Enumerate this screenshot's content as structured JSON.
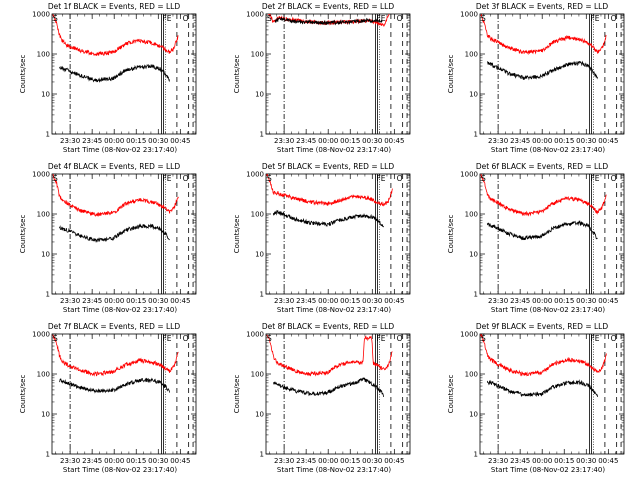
{
  "chart_data": [
    {
      "type": "line",
      "title": "Det 1f BLACK = Events, RED = LLD",
      "ylabel": "Counts/sec",
      "xlabel": "Start Time (08-Nov-02 23:17:40)",
      "yscale": "log",
      "ylim": [
        1,
        1000
      ],
      "x_tick_labels": [
        "23:30",
        "23:45",
        "00:00",
        "00:15",
        "00:30",
        "00:45"
      ],
      "x_minutes": [
        12.33,
        27.33,
        42.33,
        57.33,
        72.33,
        87.33
      ],
      "xlim_minutes": [
        0,
        98
      ],
      "markers": {
        "S": 0,
        "FE": 74.5,
        "O": 93
      },
      "series": [
        {
          "name": "LLD",
          "color": "#ff0000",
          "start_minute": 0.5,
          "end_minute": 86,
          "x": [
            0.5,
            3,
            5,
            7,
            10,
            20,
            30,
            42,
            50,
            60,
            70,
            76,
            80,
            83,
            86
          ],
          "y": [
            1000,
            600,
            300,
            220,
            170,
            120,
            100,
            110,
            180,
            220,
            180,
            140,
            110,
            140,
            300
          ]
        },
        {
          "name": "Events",
          "color": "#000000",
          "start_minute": 5,
          "end_minute": 80,
          "x": [
            5,
            10,
            20,
            30,
            42,
            50,
            60,
            68,
            74,
            78,
            80
          ],
          "y": [
            45,
            40,
            28,
            22,
            25,
            40,
            48,
            50,
            42,
            30,
            22
          ]
        }
      ]
    },
    {
      "type": "line",
      "title": "Det 2f BLACK = Events, RED = LLD",
      "ylabel": "Counts/sec",
      "xlabel": "Start Time (08-Nov-02 23:17:40)",
      "yscale": "log",
      "ylim": [
        1,
        1000
      ],
      "x_tick_labels": [
        "23:30",
        "23:45",
        "00:00",
        "00:15",
        "00:30",
        "00:45"
      ],
      "x_minutes": [
        12.33,
        27.33,
        42.33,
        57.33,
        72.33,
        87.33
      ],
      "xlim_minutes": [
        0,
        98
      ],
      "markers": {
        "S": 0,
        "FE": 74.5,
        "O": 93
      },
      "series": [
        {
          "name": "LLD",
          "color": "#ff0000",
          "start_minute": 0.5,
          "end_minute": 84,
          "x": [
            0.5,
            3,
            5,
            8,
            20,
            40,
            60,
            70,
            76,
            80,
            84
          ],
          "y": [
            1000,
            900,
            600,
            800,
            700,
            600,
            650,
            700,
            600,
            500,
            1000
          ]
        },
        {
          "name": "Events",
          "color": "#000000",
          "start_minute": 6,
          "end_minute": 79,
          "x": [
            6,
            10,
            20,
            40,
            60,
            70,
            79
          ],
          "y": [
            650,
            750,
            650,
            600,
            650,
            700,
            650
          ]
        }
      ]
    },
    {
      "type": "line",
      "title": "Det 3f BLACK = Events, RED = LLD",
      "ylabel": "Counts/sec",
      "xlabel": "Start Time (08-Nov-02 23:17:40)",
      "yscale": "log",
      "ylim": [
        1,
        1000
      ],
      "x_tick_labels": [
        "23:30",
        "23:45",
        "00:00",
        "00:15",
        "00:30",
        "00:45"
      ],
      "x_minutes": [
        12.33,
        27.33,
        42.33,
        57.33,
        72.33,
        87.33
      ],
      "xlim_minutes": [
        0,
        98
      ],
      "markers": {
        "S": 0,
        "FE": 74.5,
        "O": 93
      },
      "series": [
        {
          "name": "LLD",
          "color": "#ff0000",
          "start_minute": 0.5,
          "end_minute": 86,
          "x": [
            0.5,
            3,
            5,
            7,
            12,
            20,
            30,
            42,
            50,
            60,
            70,
            76,
            80,
            83,
            86
          ],
          "y": [
            1000,
            600,
            300,
            250,
            200,
            140,
            110,
            120,
            200,
            260,
            220,
            160,
            110,
            140,
            300
          ]
        },
        {
          "name": "Events",
          "color": "#000000",
          "start_minute": 5,
          "end_minute": 80,
          "x": [
            5,
            10,
            20,
            30,
            42,
            50,
            60,
            68,
            74,
            78,
            80
          ],
          "y": [
            60,
            50,
            32,
            25,
            28,
            40,
            55,
            60,
            50,
            32,
            25
          ]
        }
      ]
    },
    {
      "type": "line",
      "title": "Det 4f BLACK = Events, RED = LLD",
      "ylabel": "Counts/sec",
      "xlabel": "Start Time (08-Nov-02 23:17:40)",
      "yscale": "log",
      "ylim": [
        1,
        1000
      ],
      "x_tick_labels": [
        "23:30",
        "23:45",
        "00:00",
        "00:15",
        "00:30",
        "00:45"
      ],
      "x_minutes": [
        12.33,
        27.33,
        42.33,
        57.33,
        72.33,
        87.33
      ],
      "xlim_minutes": [
        0,
        98
      ],
      "markers": {
        "S": 0,
        "FE": 74.5,
        "O": 93
      },
      "series": [
        {
          "name": "LLD",
          "color": "#ff0000",
          "start_minute": 0.5,
          "end_minute": 86,
          "x": [
            0.5,
            3,
            5,
            7,
            12,
            20,
            30,
            42,
            50,
            60,
            70,
            76,
            80,
            83,
            86
          ],
          "y": [
            1000,
            600,
            300,
            220,
            170,
            120,
            95,
            110,
            180,
            230,
            190,
            150,
            110,
            140,
            300
          ]
        },
        {
          "name": "Events",
          "color": "#000000",
          "start_minute": 5,
          "end_minute": 80,
          "x": [
            5,
            10,
            20,
            30,
            42,
            50,
            60,
            68,
            74,
            78,
            80
          ],
          "y": [
            45,
            40,
            28,
            22,
            25,
            40,
            50,
            50,
            42,
            30,
            22
          ]
        }
      ]
    },
    {
      "type": "line",
      "title": "Det 5f BLACK = Events, RED = LLD",
      "ylabel": "Counts/sec",
      "xlabel": "Start Time (08-Nov-02 23:17:40)",
      "yscale": "log",
      "ylim": [
        1,
        1000
      ],
      "x_tick_labels": [
        "23:30",
        "23:45",
        "00:00",
        "00:15",
        "00:30",
        "00:45"
      ],
      "x_minutes": [
        12.33,
        27.33,
        42.33,
        57.33,
        72.33,
        87.33
      ],
      "xlim_minutes": [
        0,
        98
      ],
      "markers": {
        "S": 0,
        "FE": 74.5,
        "O": 93
      },
      "series": [
        {
          "name": "LLD",
          "color": "#ff0000",
          "start_minute": 0.5,
          "end_minute": 86,
          "x": [
            0.5,
            3,
            5,
            8,
            12,
            20,
            30,
            42,
            50,
            60,
            70,
            76,
            80,
            83,
            86
          ],
          "y": [
            1000,
            600,
            350,
            330,
            300,
            240,
            200,
            180,
            220,
            280,
            250,
            200,
            170,
            200,
            400
          ]
        },
        {
          "name": "Events",
          "color": "#000000",
          "start_minute": 5,
          "end_minute": 80,
          "x": [
            5,
            8,
            12,
            20,
            30,
            42,
            50,
            60,
            68,
            74,
            78,
            80
          ],
          "y": [
            100,
            110,
            100,
            75,
            60,
            55,
            70,
            85,
            90,
            80,
            60,
            45
          ]
        }
      ]
    },
    {
      "type": "line",
      "title": "Det 6f BLACK = Events, RED = LLD",
      "ylabel": "Counts/sec",
      "xlabel": "Start Time (08-Nov-02 23:17:40)",
      "yscale": "log",
      "ylim": [
        1,
        1000
      ],
      "x_tick_labels": [
        "23:30",
        "23:45",
        "00:00",
        "00:15",
        "00:30",
        "00:45"
      ],
      "x_minutes": [
        12.33,
        27.33,
        42.33,
        57.33,
        72.33,
        87.33
      ],
      "xlim_minutes": [
        0,
        98
      ],
      "markers": {
        "S": 0,
        "FE": 74.5,
        "O": 93
      },
      "series": [
        {
          "name": "LLD",
          "color": "#ff0000",
          "start_minute": 0.5,
          "end_minute": 86,
          "x": [
            0.5,
            3,
            5,
            7,
            12,
            20,
            30,
            42,
            50,
            60,
            70,
            76,
            80,
            83,
            86
          ],
          "y": [
            1000,
            600,
            300,
            240,
            190,
            130,
            100,
            115,
            190,
            250,
            210,
            160,
            110,
            140,
            300
          ]
        },
        {
          "name": "Events",
          "color": "#000000",
          "start_minute": 5,
          "end_minute": 80,
          "x": [
            5,
            10,
            20,
            30,
            42,
            50,
            60,
            68,
            74,
            78,
            80
          ],
          "y": [
            55,
            48,
            32,
            25,
            28,
            45,
            58,
            60,
            50,
            32,
            24
          ]
        }
      ]
    },
    {
      "type": "line",
      "title": "Det 7f BLACK = Events, RED = LLD",
      "ylabel": "Counts/sec",
      "xlabel": "Start Time (08-Nov-02 23:17:40)",
      "yscale": "log",
      "ylim": [
        1,
        1000
      ],
      "x_tick_labels": [
        "23:30",
        "23:45",
        "00:00",
        "00:15",
        "00:30",
        "00:45"
      ],
      "x_minutes": [
        12.33,
        27.33,
        42.33,
        57.33,
        72.33,
        87.33
      ],
      "xlim_minutes": [
        0,
        98
      ],
      "markers": {
        "S": 0,
        "FE": 74.5,
        "O": 93
      },
      "series": [
        {
          "name": "LLD",
          "color": "#ff0000",
          "start_minute": 0.5,
          "end_minute": 86,
          "x": [
            0.5,
            3,
            5,
            7,
            12,
            20,
            30,
            42,
            50,
            60,
            70,
            76,
            80,
            83,
            86
          ],
          "y": [
            1000,
            600,
            300,
            200,
            160,
            120,
            100,
            115,
            170,
            220,
            190,
            150,
            120,
            150,
            350
          ]
        },
        {
          "name": "Events",
          "color": "#000000",
          "start_minute": 5,
          "end_minute": 80,
          "x": [
            5,
            10,
            20,
            30,
            42,
            50,
            60,
            68,
            74,
            78,
            80
          ],
          "y": [
            70,
            60,
            45,
            38,
            40,
            55,
            70,
            70,
            60,
            45,
            35
          ]
        }
      ]
    },
    {
      "type": "line",
      "title": "Det 8f BLACK = Events, RED = LLD",
      "ylabel": "Counts/sec",
      "xlabel": "Start Time (08-Nov-02 23:17:40)",
      "yscale": "log",
      "ylim": [
        1,
        1000
      ],
      "x_tick_labels": [
        "23:30",
        "23:45",
        "00:00",
        "00:15",
        "00:30",
        "00:45"
      ],
      "x_minutes": [
        12.33,
        27.33,
        42.33,
        57.33,
        72.33,
        87.33
      ],
      "xlim_minutes": [
        0,
        98
      ],
      "markers": {
        "S": 0,
        "FE": 74.5,
        "O": 93
      },
      "series": [
        {
          "name": "LLD",
          "color": "#ff0000",
          "start_minute": 0.5,
          "end_minute": 86,
          "x": [
            0.5,
            3,
            5,
            7,
            12,
            20,
            30,
            42,
            50,
            60,
            66,
            67,
            72,
            73,
            76,
            80,
            83,
            86
          ],
          "y": [
            1000,
            600,
            280,
            200,
            160,
            120,
            100,
            110,
            170,
            200,
            190,
            800,
            800,
            190,
            160,
            130,
            160,
            350
          ]
        },
        {
          "name": "Events",
          "color": "#000000",
          "start_minute": 5,
          "end_minute": 80,
          "x": [
            5,
            10,
            20,
            30,
            42,
            50,
            60,
            66,
            70,
            74,
            78,
            80
          ],
          "y": [
            60,
            50,
            38,
            32,
            35,
            48,
            58,
            75,
            65,
            50,
            38,
            30
          ]
        }
      ]
    },
    {
      "type": "line",
      "title": "Det 9f BLACK = Events, RED = LLD",
      "ylabel": "Counts/sec",
      "xlabel": "Start Time (08-Nov-02 23:17:40)",
      "yscale": "log",
      "ylim": [
        1,
        1000
      ],
      "x_tick_labels": [
        "23:30",
        "23:45",
        "00:00",
        "00:15",
        "00:30",
        "00:45"
      ],
      "x_minutes": [
        12.33,
        27.33,
        42.33,
        57.33,
        72.33,
        87.33
      ],
      "xlim_minutes": [
        0,
        98
      ],
      "markers": {
        "S": 0,
        "FE": 74.5,
        "O": 93
      },
      "series": [
        {
          "name": "LLD",
          "color": "#ff0000",
          "start_minute": 0.5,
          "end_minute": 86,
          "x": [
            0.5,
            3,
            5,
            7,
            12,
            20,
            30,
            42,
            50,
            60,
            70,
            76,
            80,
            83,
            86
          ],
          "y": [
            1000,
            600,
            300,
            230,
            180,
            125,
            100,
            110,
            180,
            230,
            200,
            150,
            110,
            140,
            300
          ]
        },
        {
          "name": "Events",
          "color": "#000000",
          "start_minute": 5,
          "end_minute": 80,
          "x": [
            5,
            10,
            20,
            30,
            42,
            50,
            60,
            68,
            74,
            78,
            80
          ],
          "y": [
            65,
            55,
            38,
            30,
            32,
            48,
            60,
            62,
            52,
            36,
            28
          ]
        }
      ]
    }
  ]
}
